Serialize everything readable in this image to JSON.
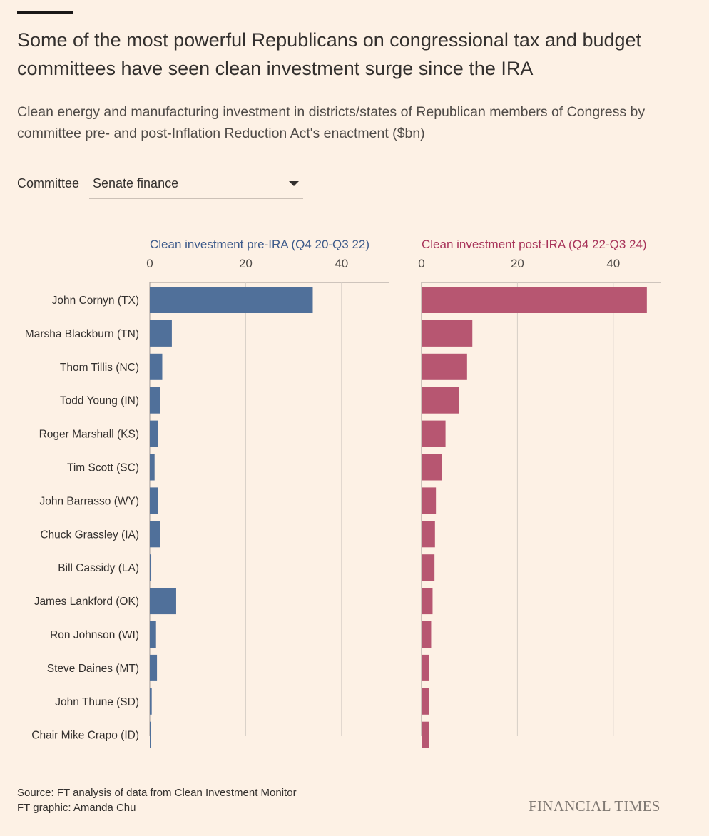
{
  "header": {
    "title": "Some of the most powerful Republicans on congressional tax and budget committees have seen clean investment surge since the IRA",
    "subtitle": "Clean energy and manufacturing investment in districts/states of Republican members of Congress by committee pre- and post-Inflation Reduction Act's enactment ($bn)"
  },
  "filter": {
    "label": "Committee",
    "selected": "Senate finance"
  },
  "chart_data": {
    "type": "bar",
    "orientation": "horizontal",
    "categories": [
      "John Cornyn (TX)",
      "Marsha Blackburn (TN)",
      "Thom Tillis (NC)",
      "Todd Young (IN)",
      "Roger Marshall (KS)",
      "Tim Scott (SC)",
      "John Barrasso (WY)",
      "Chuck Grassley (IA)",
      "Bill Cassidy (LA)",
      "James Lankford (OK)",
      "Ron Johnson (WI)",
      "Steve Daines (MT)",
      "John Thune (SD)",
      "Chair Mike Crapo (ID)"
    ],
    "series": [
      {
        "name": "Clean investment pre-IRA (Q4 20-Q3 22)",
        "color": "#50709a",
        "values": [
          34,
          4.6,
          2.6,
          2.1,
          1.7,
          1.0,
          1.7,
          2.1,
          0.3,
          5.5,
          1.3,
          1.5,
          0.4,
          0.05
        ],
        "xlim": [
          0,
          50
        ],
        "ticks": [
          0,
          20,
          40
        ]
      },
      {
        "name": "Clean investment post-IRA (Q4 22-Q3 24)",
        "color": "#b75671",
        "values": [
          47,
          10.6,
          9.5,
          7.8,
          5.0,
          4.3,
          3.0,
          2.8,
          2.7,
          2.3,
          2.0,
          1.5,
          1.5,
          1.5
        ],
        "xlim": [
          0,
          50
        ],
        "ticks": [
          0,
          20,
          40
        ]
      }
    ],
    "title_colors": [
      "#3d5a8a",
      "#a8345a"
    ]
  },
  "footer": {
    "source": "Source: FT analysis of data from Clean Investment Monitor",
    "credit": "FT graphic: Amanda Chu",
    "brand": "FINANCIAL TIMES"
  }
}
